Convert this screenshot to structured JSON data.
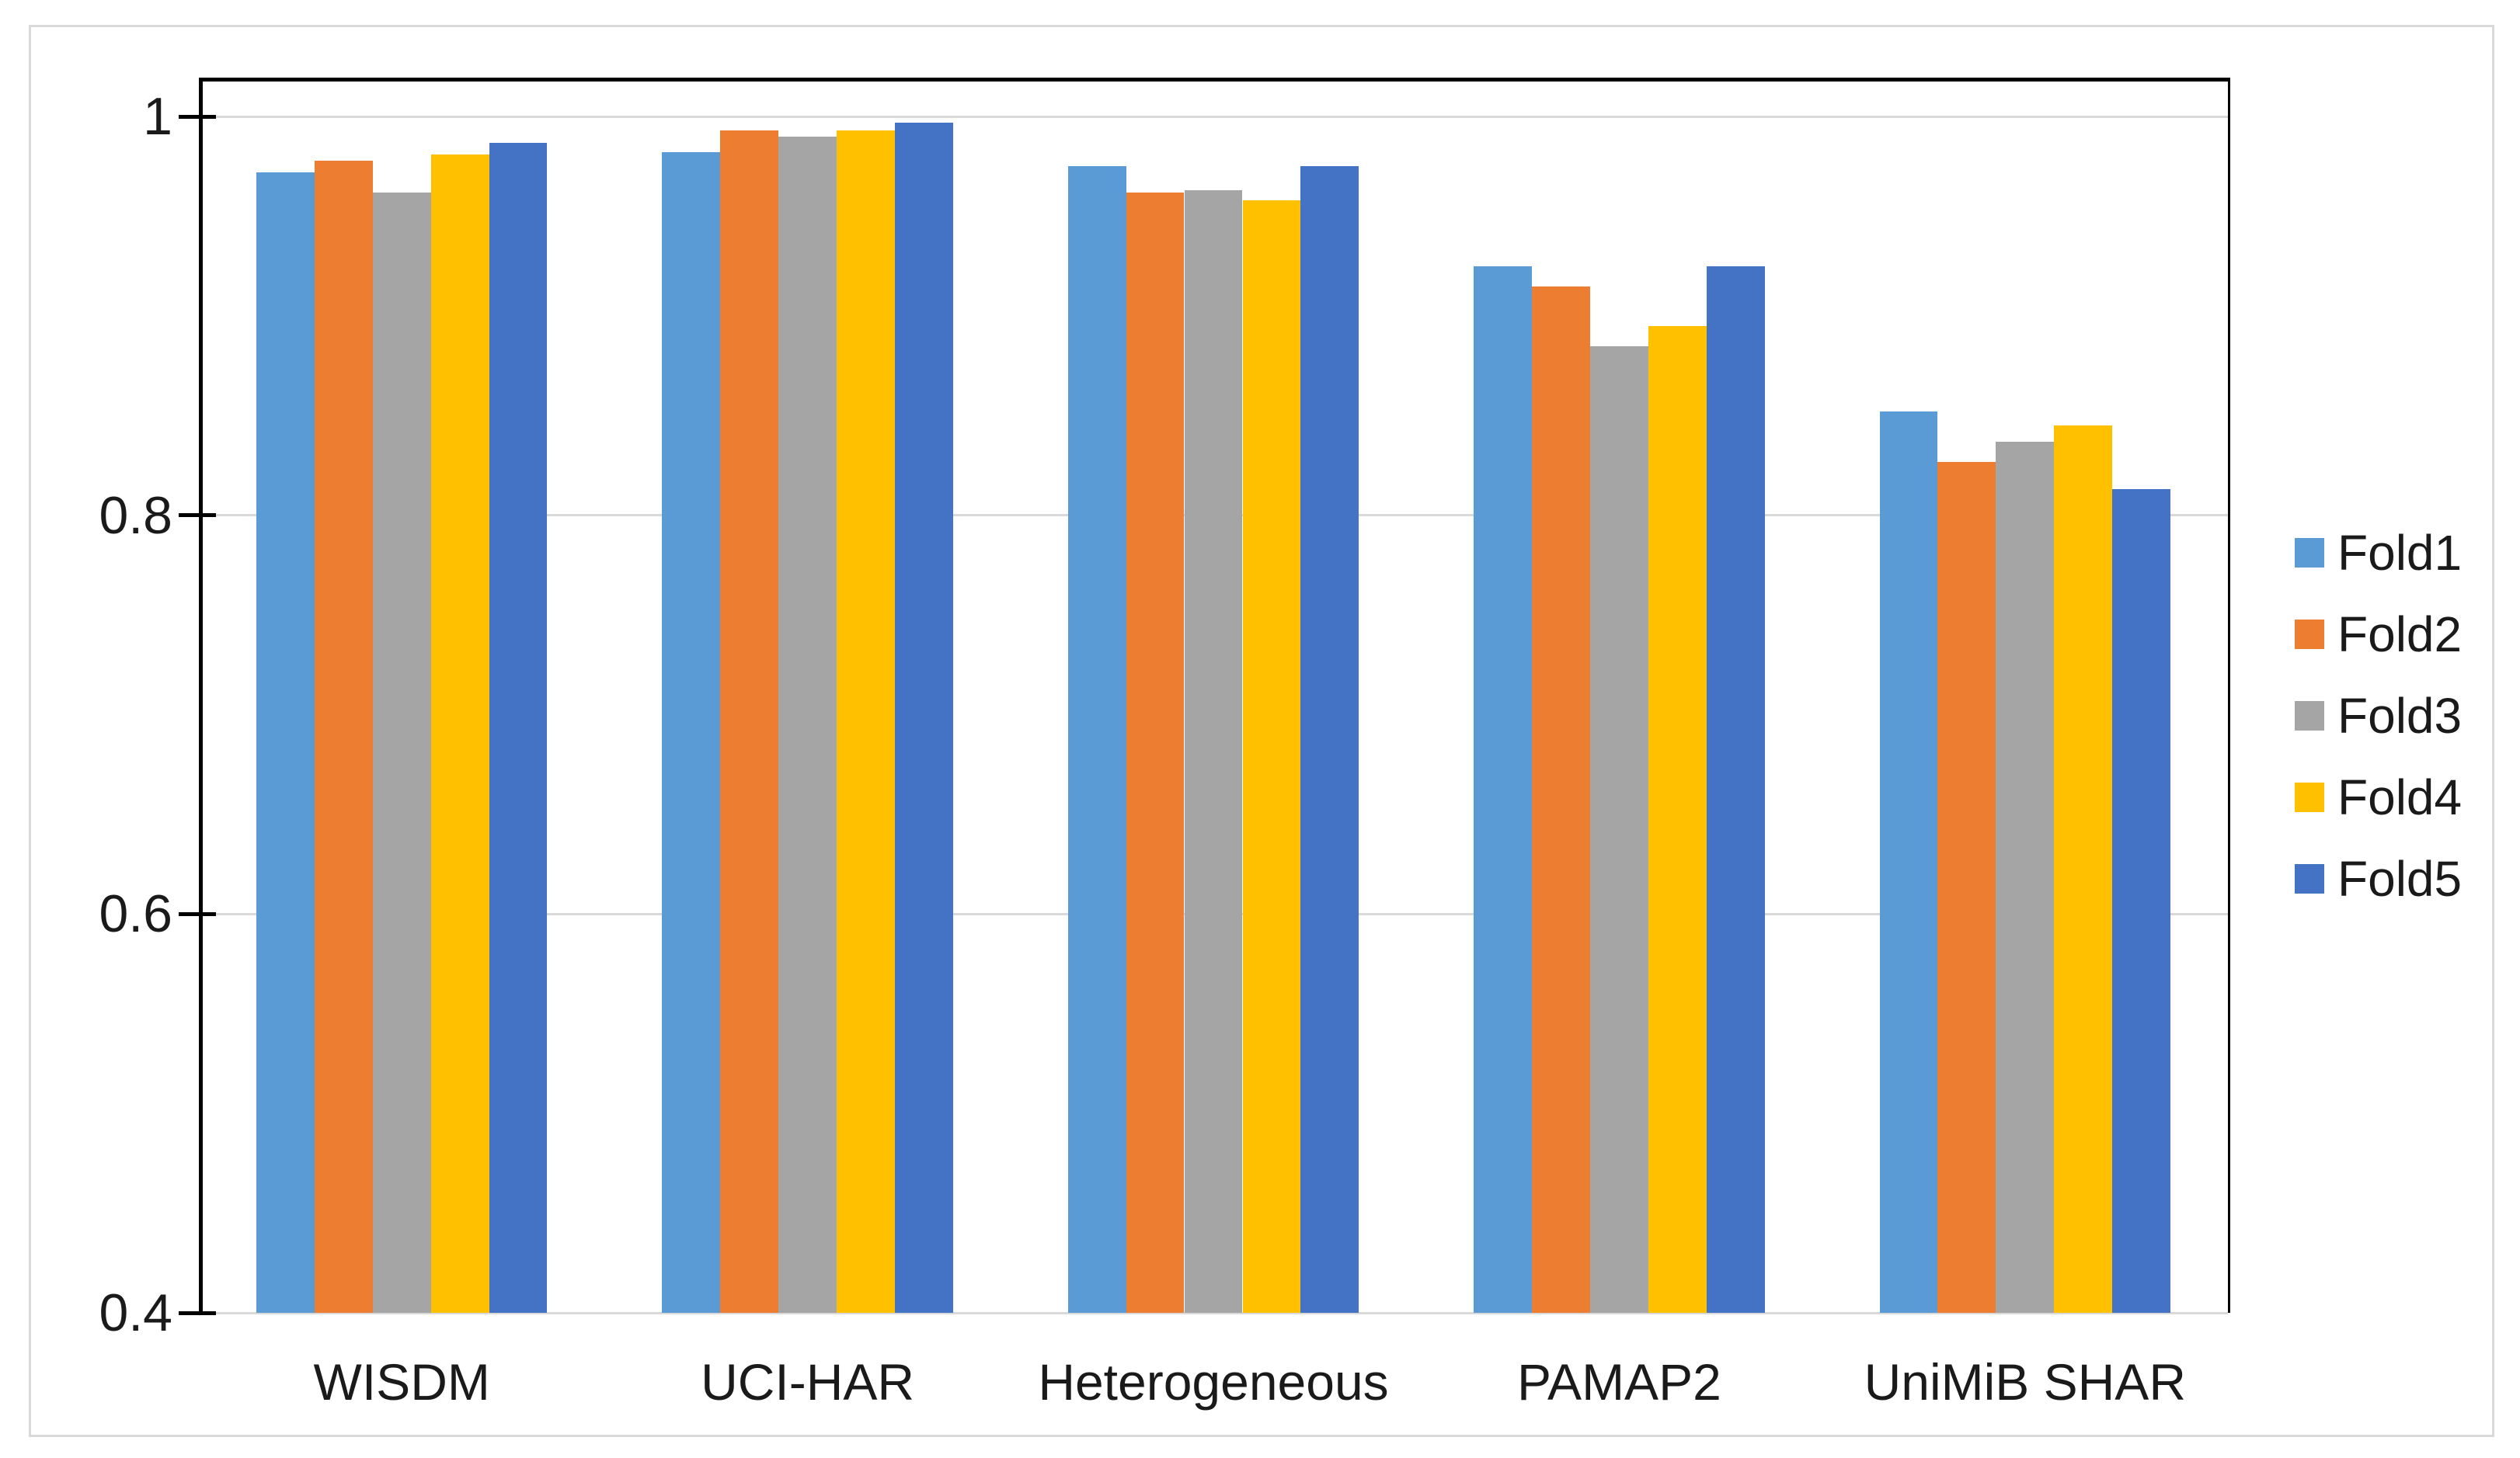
{
  "figure": {
    "background_color": "#FFFFFF",
    "border_color": "#D9D9D9"
  },
  "chart_data": {
    "type": "bar",
    "title": "",
    "xlabel": "",
    "ylabel": "",
    "categories": [
      "WISDM",
      "UCI-HAR",
      "Heterogeneous",
      "PAMAP2",
      "UniMiB SHAR"
    ],
    "series": [
      {
        "name": "Fold1",
        "color": "#5B9BD5",
        "values": [
          0.972,
          0.982,
          0.975,
          0.925,
          0.852
        ]
      },
      {
        "name": "Fold2",
        "color": "#ED7D31",
        "values": [
          0.978,
          0.993,
          0.962,
          0.915,
          0.827
        ]
      },
      {
        "name": "Fold3",
        "color": "#A5A5A5",
        "values": [
          0.962,
          0.99,
          0.963,
          0.885,
          0.837
        ]
      },
      {
        "name": "Fold4",
        "color": "#FFC000",
        "values": [
          0.981,
          0.993,
          0.958,
          0.895,
          0.845
        ]
      },
      {
        "name": "Fold5",
        "color": "#4472C4",
        "values": [
          0.987,
          0.997,
          0.975,
          0.925,
          0.813
        ]
      }
    ],
    "y_axis": {
      "min": 0.4,
      "max": 1.02,
      "tick_values": [
        1,
        0.8,
        0.6,
        0.4
      ],
      "tick_labels": [
        "1",
        "0.8",
        "0.6",
        "0.4"
      ]
    },
    "grid": true,
    "gridline_color": "#D9D9D9",
    "axis_color": "#000000",
    "text_color": "#1A1A1A",
    "legend_position": "right",
    "legend_labels": [
      "Fold1",
      "Fold2",
      "Fold3",
      "Fold4",
      "Fold5"
    ]
  }
}
